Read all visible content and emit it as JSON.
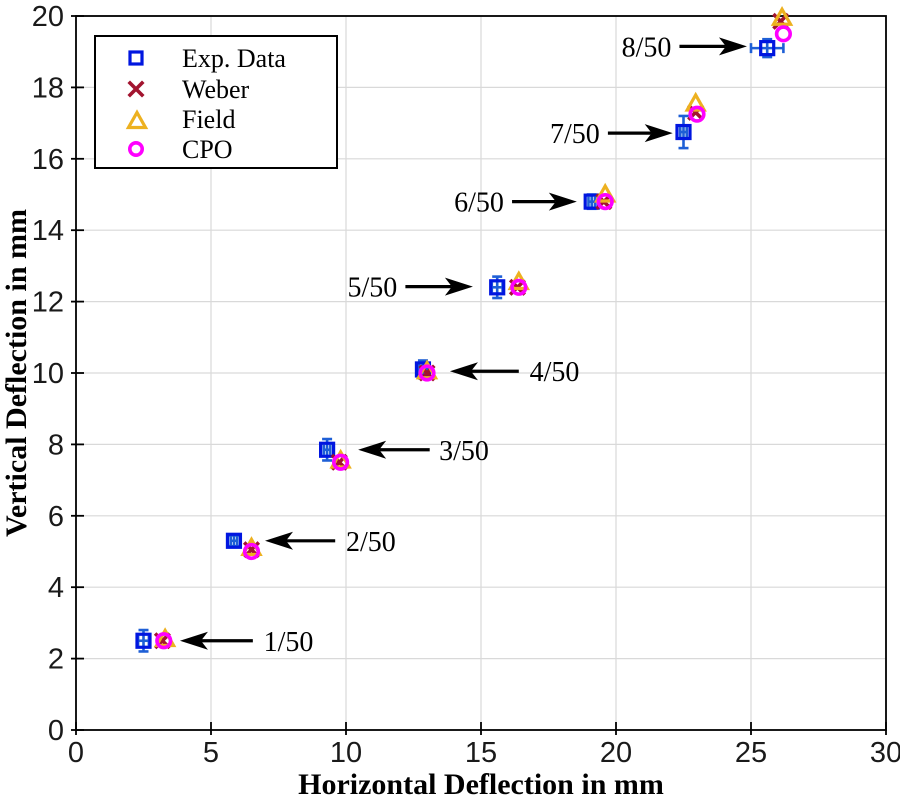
{
  "chart_data": {
    "type": "scatter",
    "title": "",
    "xlabel": "Horizontal Deflection in mm",
    "ylabel": "Vertical Deflection in mm",
    "xlim": [
      0,
      30
    ],
    "ylim": [
      0,
      20
    ],
    "xticks": [
      0,
      5,
      10,
      15,
      20,
      25,
      30
    ],
    "yticks": [
      0,
      2,
      4,
      6,
      8,
      10,
      12,
      14,
      16,
      18,
      20
    ],
    "grid": true,
    "grid_color": "#d9d9d9",
    "legend_position": "top-left",
    "series": [
      {
        "name": "Exp. Data",
        "marker": "square",
        "color": "#0016e0",
        "errorbar_color": "#1e5fd6",
        "x": [
          2.5,
          5.85,
          9.3,
          12.85,
          15.6,
          19.1,
          22.5,
          25.6
        ],
        "y": [
          2.5,
          5.3,
          7.85,
          10.1,
          12.4,
          14.8,
          16.75,
          19.1
        ],
        "xerr": [
          0.2,
          0.12,
          0.12,
          0.15,
          0.2,
          0.12,
          0.12,
          0.6
        ],
        "yerr": [
          0.3,
          0.15,
          0.3,
          0.25,
          0.3,
          0.2,
          0.45,
          0.25
        ]
      },
      {
        "name": "Weber",
        "marker": "x",
        "color": "#A2142F",
        "x": [
          3.2,
          6.5,
          9.75,
          13.0,
          16.35,
          19.55,
          22.95,
          26.1
        ],
        "y": [
          2.5,
          5.05,
          7.5,
          10.0,
          12.4,
          14.8,
          17.3,
          19.85
        ]
      },
      {
        "name": "Field",
        "marker": "triangle",
        "color": "#EDB120",
        "x": [
          3.3,
          6.5,
          9.8,
          13.0,
          16.4,
          19.6,
          22.95,
          26.15
        ],
        "y": [
          2.55,
          5.1,
          7.55,
          10.05,
          12.55,
          15.0,
          17.55,
          19.95
        ]
      },
      {
        "name": "CPO",
        "marker": "circle",
        "color": "#FF00FF",
        "x": [
          3.25,
          6.5,
          9.8,
          13.0,
          16.4,
          19.6,
          23.0,
          26.2
        ],
        "y": [
          2.5,
          5.0,
          7.5,
          10.0,
          12.4,
          14.8,
          17.25,
          19.5
        ]
      }
    ],
    "annotations": [
      {
        "label": "1/50",
        "y": 2.5,
        "tip_x": 3.85,
        "tail_x": 6.55,
        "text_x": 6.95,
        "text_side": "right"
      },
      {
        "label": "2/50",
        "y": 5.3,
        "tip_x": 7.0,
        "tail_x": 9.6,
        "text_x": 10.0,
        "text_side": "right"
      },
      {
        "label": "3/50",
        "y": 7.85,
        "tip_x": 10.45,
        "tail_x": 13.1,
        "text_x": 13.45,
        "text_side": "right"
      },
      {
        "label": "4/50",
        "y": 10.05,
        "tip_x": 13.85,
        "tail_x": 16.4,
        "text_x": 16.8,
        "text_side": "right"
      },
      {
        "label": "5/50",
        "y": 12.42,
        "tip_x": 14.7,
        "tail_x": 12.2,
        "text_x": 11.9,
        "text_side": "left"
      },
      {
        "label": "6/50",
        "y": 14.8,
        "tip_x": 18.55,
        "tail_x": 16.15,
        "text_x": 15.85,
        "text_side": "left"
      },
      {
        "label": "7/50",
        "y": 16.72,
        "tip_x": 22.1,
        "tail_x": 19.7,
        "text_x": 19.4,
        "text_side": "left"
      },
      {
        "label": "8/50",
        "y": 19.15,
        "tip_x": 24.85,
        "tail_x": 22.35,
        "text_x": 22.05,
        "text_side": "left"
      }
    ]
  }
}
